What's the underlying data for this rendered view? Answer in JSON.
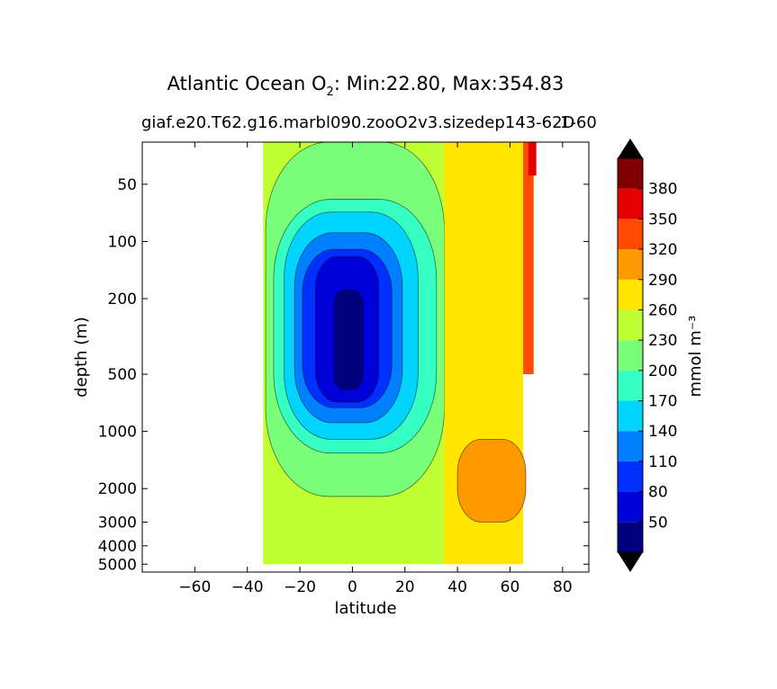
{
  "chart_data": {
    "type": "contour",
    "title_prefix": "Atlantic Ocean O",
    "title_sub": "2",
    "title_suffix": ": Min:22.80, Max:354.83",
    "subtitle": "giaf.e20.T62.g16.marbl090.zooO2v3.sizedep143-62D",
    "subtitle_overlay": "1-60",
    "xlabel": "latitude",
    "ylabel": "depth (m)",
    "xlim": [
      -80,
      90
    ],
    "ylim": [
      5500,
      30
    ],
    "y_scale": "log",
    "x_ticks": [
      -60,
      -40,
      -20,
      0,
      20,
      40,
      60,
      80
    ],
    "x_tick_labels": [
      "−60",
      "−40",
      "−20",
      "0",
      "20",
      "40",
      "60",
      "80"
    ],
    "y_ticks": [
      50,
      100,
      200,
      500,
      1000,
      2000,
      3000,
      4000,
      5000
    ],
    "y_tick_labels": [
      "50",
      "100",
      "200",
      "500",
      "1000",
      "2000",
      "3000",
      "4000",
      "5000"
    ],
    "data_extent_lat": [
      -34,
      70
    ],
    "min": 22.8,
    "max": 354.83,
    "levels": [
      20,
      50,
      80,
      110,
      140,
      170,
      200,
      230,
      260,
      290,
      320,
      350,
      380,
      410
    ],
    "level_colors": [
      "#00007f",
      "#0000d8",
      "#0030ff",
      "#0080ff",
      "#00d4ff",
      "#35ffc1",
      "#7aff7a",
      "#c1ff35",
      "#ffe500",
      "#ff9900",
      "#ff4a00",
      "#e40000",
      "#7f0000"
    ],
    "colorbar": {
      "label": "mmol m⁻³",
      "tick_labels": [
        "50",
        "80",
        "110",
        "140",
        "170",
        "200",
        "230",
        "260",
        "290",
        "320",
        "350",
        "380"
      ],
      "extend": "both",
      "under_color": "#000000",
      "over_color": "#000000"
    },
    "regions": [
      {
        "name": "open-ocean-background",
        "value_range": [
          230,
          260
        ],
        "lat": [
          -34,
          35
        ],
        "depth": [
          30,
          5000
        ]
      },
      {
        "name": "thermocline-band",
        "value_range": [
          200,
          230
        ],
        "lat": [
          -33,
          35
        ],
        "depth": [
          30,
          2200
        ]
      },
      {
        "name": "omz-outer",
        "value_range": [
          170,
          200
        ],
        "lat": [
          -30,
          32
        ],
        "depth": [
          60,
          1300
        ]
      },
      {
        "name": "omz-140",
        "value_range": [
          140,
          170
        ],
        "lat": [
          -26,
          25
        ],
        "depth": [
          70,
          1100
        ]
      },
      {
        "name": "omz-110",
        "value_range": [
          110,
          140
        ],
        "lat": [
          -22,
          19
        ],
        "depth": [
          90,
          900
        ]
      },
      {
        "name": "omz-80",
        "value_range": [
          80,
          110
        ],
        "lat": [
          -19,
          15
        ],
        "depth": [
          110,
          750
        ]
      },
      {
        "name": "omz-50",
        "value_range": [
          50,
          80
        ],
        "lat": [
          -14,
          10
        ],
        "depth": [
          120,
          700
        ]
      },
      {
        "name": "omz-core",
        "value_range": [
          20,
          50
        ],
        "lat": [
          -7,
          4
        ],
        "depth": [
          180,
          600
        ]
      },
      {
        "name": "north-subtropical-ventilated",
        "value_range": [
          260,
          290
        ],
        "lat": [
          35,
          65
        ],
        "depth": [
          30,
          5000
        ]
      },
      {
        "name": "deep-water-formation",
        "value_range": [
          290,
          320
        ],
        "lat": [
          40,
          66
        ],
        "depth": [
          1100,
          3000
        ]
      },
      {
        "name": "nordic-seas",
        "value_range": [
          320,
          350
        ],
        "lat": [
          65,
          69
        ],
        "depth": [
          30,
          500
        ]
      },
      {
        "name": "nordic-seas-max",
        "value_range": [
          350,
          380
        ],
        "lat": [
          67,
          70
        ],
        "depth": [
          30,
          45
        ]
      }
    ]
  }
}
